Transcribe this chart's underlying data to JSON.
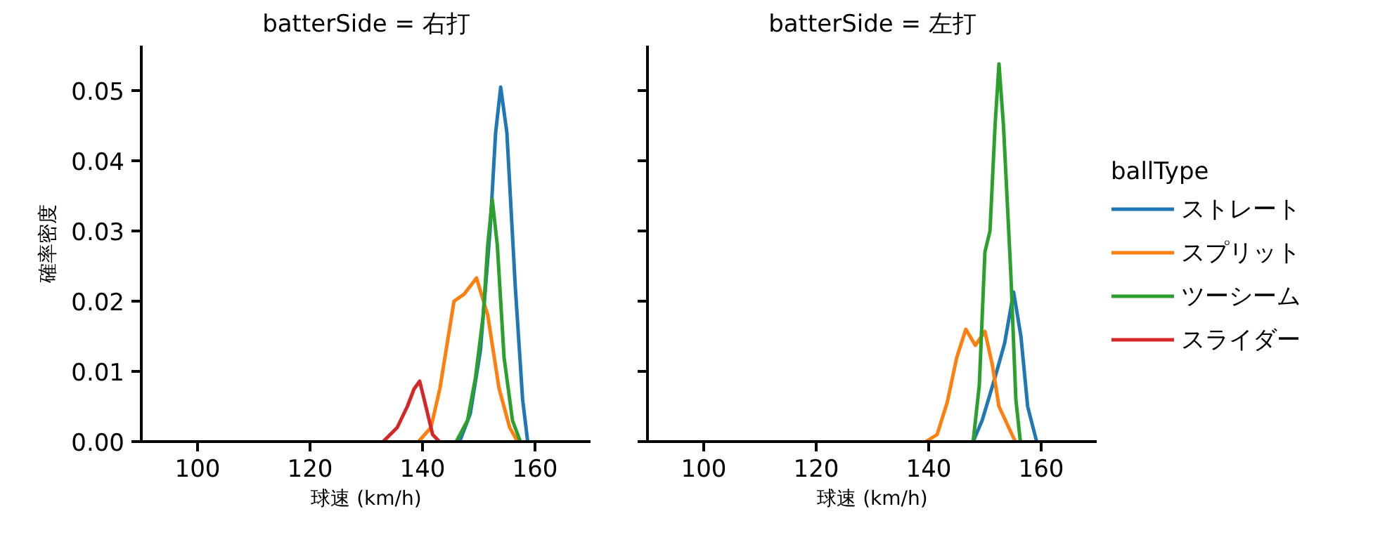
{
  "chart_data": [
    {
      "type": "line",
      "title": "batterSide = 右打",
      "xlabel": "球速 (km/h)",
      "ylabel": "確率密度",
      "xlim": [
        90,
        170
      ],
      "xticks": [
        100,
        120,
        140,
        160
      ],
      "ylim": [
        0,
        0.0564
      ],
      "yticks": [
        {
          "value": 0,
          "label": "0.00"
        },
        {
          "value": 0.01,
          "label": "0.01"
        },
        {
          "value": 0.02,
          "label": "0.02"
        },
        {
          "value": 0.03,
          "label": "0.03"
        },
        {
          "value": 0.04,
          "label": "0.04"
        },
        {
          "value": 0.05,
          "label": "0.05"
        }
      ],
      "grid": false,
      "legend": "right",
      "legend_title": "ballType",
      "line_style": "solid",
      "marker": "none",
      "series": [
        {
          "name": "ストレート",
          "color": "#1f77b4",
          "x": [
            146.6,
            148.5,
            150.3,
            152.0,
            153.0,
            153.9,
            155.0,
            156.5,
            157.8,
            158.7
          ],
          "values": [
            0,
            0.004,
            0.013,
            0.03,
            0.044,
            0.0505,
            0.044,
            0.022,
            0.006,
            0
          ]
        },
        {
          "name": "スプリット",
          "color": "#ff7f0e",
          "x": [
            139.3,
            141.5,
            143.1,
            145.6,
            147.4,
            149.6,
            151.6,
            153.6,
            155.5,
            156.9
          ],
          "values": [
            0,
            0.002,
            0.0076,
            0.02,
            0.021,
            0.0233,
            0.018,
            0.0076,
            0.002,
            0
          ]
        },
        {
          "name": "ツーシーム",
          "color": "#2ca02c",
          "x": [
            146.0,
            148.0,
            149.4,
            150.8,
            151.6,
            152.4,
            153.3,
            154.5,
            156.0,
            157.4
          ],
          "values": [
            0,
            0.003,
            0.009,
            0.018,
            0.028,
            0.0345,
            0.028,
            0.012,
            0.003,
            0
          ]
        },
        {
          "name": "スライダー",
          "color": "#d62728",
          "x": [
            133.0,
            135.5,
            137.3,
            138.5,
            139.5,
            140.6,
            141.8,
            143.0
          ],
          "values": [
            0,
            0.002,
            0.005,
            0.0075,
            0.0086,
            0.005,
            0.001,
            0
          ]
        }
      ]
    },
    {
      "type": "line",
      "title": "batterSide = 左打",
      "xlabel": "球速 (km/h)",
      "xlim": [
        90,
        170
      ],
      "xticks": [
        100,
        120,
        140,
        160
      ],
      "ylim": [
        0,
        0.0564
      ],
      "yticks": [
        {
          "value": 0,
          "label": null
        },
        {
          "value": 0.01,
          "label": null
        },
        {
          "value": 0.02,
          "label": null
        },
        {
          "value": 0.03,
          "label": null
        },
        {
          "value": 0.04,
          "label": null
        },
        {
          "value": 0.05,
          "label": null
        }
      ],
      "tick_labels": "x",
      "grid": false,
      "legend": false,
      "line_style": "solid",
      "marker": "none",
      "series": [
        {
          "color": "#1f77b4",
          "x": [
            147.9,
            149.5,
            151.0,
            152.1,
            153.5,
            155.1,
            156.4,
            157.6,
            159.2
          ],
          "values": [
            0,
            0.003,
            0.007,
            0.01,
            0.014,
            0.0213,
            0.015,
            0.005,
            0
          ]
        },
        {
          "color": "#ff7f0e",
          "x": [
            139.5,
            141.5,
            143.3,
            145.0,
            146.6,
            148.3,
            150.0,
            151.3,
            152.5,
            155.4
          ],
          "values": [
            0,
            0.001,
            0.0056,
            0.012,
            0.016,
            0.0137,
            0.0157,
            0.011,
            0.005,
            0
          ]
        },
        {
          "color": "#2ca02c",
          "x": [
            147.9,
            149.0,
            150.0,
            150.9,
            151.8,
            152.5,
            153.3,
            154.6,
            155.5,
            156.3
          ],
          "values": [
            0,
            0.008,
            0.027,
            0.03,
            0.045,
            0.0538,
            0.045,
            0.024,
            0.006,
            0
          ]
        }
      ]
    }
  ]
}
